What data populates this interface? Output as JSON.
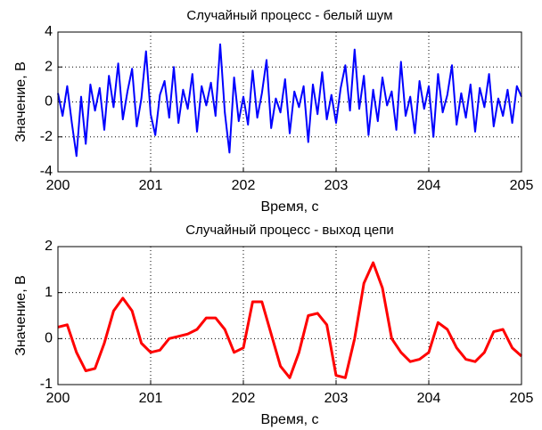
{
  "chart_data": [
    {
      "type": "line",
      "title": "Случайный процесс - белый шум",
      "xlabel": "Время, с",
      "ylabel": "Значение, В",
      "color": "#0000ff",
      "xlim": [
        200,
        205
      ],
      "xticks": [
        200,
        201,
        202,
        203,
        204,
        205
      ],
      "ylim": [
        -4,
        4
      ],
      "yticks": [
        -4,
        -2,
        0,
        2,
        4
      ],
      "grid": true,
      "x": [
        200,
        200.05,
        200.1,
        200.15,
        200.2,
        200.25,
        200.3,
        200.35,
        200.4,
        200.45,
        200.5,
        200.55,
        200.6,
        200.65,
        200.7,
        200.75,
        200.8,
        200.85,
        200.9,
        200.95,
        201,
        201.05,
        201.1,
        201.15,
        201.2,
        201.25,
        201.3,
        201.35,
        201.4,
        201.45,
        201.5,
        201.55,
        201.6,
        201.65,
        201.7,
        201.75,
        201.8,
        201.85,
        201.9,
        201.95,
        202,
        202.05,
        202.1,
        202.15,
        202.2,
        202.25,
        202.3,
        202.35,
        202.4,
        202.45,
        202.5,
        202.55,
        202.6,
        202.65,
        202.7,
        202.75,
        202.8,
        202.85,
        202.9,
        202.95,
        203,
        203.05,
        203.1,
        203.15,
        203.2,
        203.25,
        203.3,
        203.35,
        203.4,
        203.45,
        203.5,
        203.55,
        203.6,
        203.65,
        203.7,
        203.75,
        203.8,
        203.85,
        203.9,
        203.95,
        204,
        204.05,
        204.1,
        204.15,
        204.2,
        204.25,
        204.3,
        204.35,
        204.4,
        204.45,
        204.5,
        204.55,
        204.6,
        204.65,
        204.7,
        204.75,
        204.8,
        204.85,
        204.9,
        204.95,
        205
      ],
      "values": [
        0.5,
        -0.8,
        0.9,
        -1.2,
        -3.1,
        0.3,
        -2.4,
        1.0,
        -0.5,
        0.8,
        -1.6,
        1.5,
        -0.3,
        2.2,
        -1.0,
        0.6,
        1.9,
        -1.4,
        0.2,
        2.9,
        -0.7,
        -1.9,
        0.4,
        1.2,
        -0.9,
        2.0,
        -1.2,
        0.7,
        -0.4,
        1.6,
        -1.7,
        0.9,
        -0.2,
        1.1,
        -0.8,
        3.3,
        -0.6,
        -2.9,
        1.4,
        -1.1,
        0.3,
        -1.3,
        1.8,
        -0.9,
        0.5,
        2.4,
        -1.5,
        0.2,
        -0.6,
        1.3,
        -1.8,
        0.6,
        -0.3,
        0.9,
        -2.3,
        1.0,
        -0.7,
        1.7,
        -1.0,
        0.4,
        -1.2,
        0.8,
        2.1,
        -0.5,
        3.0,
        -0.4,
        1.5,
        -1.9,
        0.7,
        -1.1,
        1.4,
        -0.2,
        0.6,
        -1.6,
        2.3,
        -0.8,
        0.3,
        -1.8,
        1.2,
        -0.4,
        0.9,
        -2.0,
        1.6,
        -0.6,
        0.4,
        2.1,
        -1.3,
        0.5,
        -0.9,
        1.0,
        -1.7,
        0.8,
        -0.3,
        1.6,
        -1.4,
        0.2,
        -0.8,
        0.7,
        -1.2,
        0.9,
        0.3
      ]
    },
    {
      "type": "line",
      "title": "Случайный процесс - выход цепи",
      "xlabel": "Время, с",
      "ylabel": "Значение, В",
      "color": "#ff0000",
      "xlim": [
        200,
        205
      ],
      "xticks": [
        200,
        201,
        202,
        203,
        204,
        205
      ],
      "ylim": [
        -1,
        2
      ],
      "yticks": [
        -1,
        0,
        1,
        2
      ],
      "grid": true,
      "x": [
        200,
        200.1,
        200.2,
        200.3,
        200.4,
        200.5,
        200.6,
        200.7,
        200.8,
        200.9,
        201,
        201.1,
        201.2,
        201.3,
        201.4,
        201.5,
        201.6,
        201.7,
        201.8,
        201.9,
        202,
        202.1,
        202.2,
        202.3,
        202.4,
        202.5,
        202.6,
        202.7,
        202.8,
        202.9,
        203,
        203.1,
        203.2,
        203.3,
        203.4,
        203.5,
        203.6,
        203.7,
        203.8,
        203.9,
        204,
        204.1,
        204.2,
        204.3,
        204.4,
        204.5,
        204.6,
        204.7,
        204.8,
        204.9,
        205
      ],
      "values": [
        0.25,
        0.3,
        -0.3,
        -0.7,
        -0.65,
        -0.1,
        0.6,
        0.88,
        0.6,
        -0.1,
        -0.3,
        -0.25,
        0.0,
        0.05,
        0.1,
        0.2,
        0.45,
        0.45,
        0.2,
        -0.3,
        -0.2,
        0.8,
        0.8,
        0.1,
        -0.6,
        -0.85,
        -0.3,
        0.5,
        0.55,
        0.3,
        -0.8,
        -0.85,
        0.0,
        1.2,
        1.65,
        1.1,
        0.0,
        -0.3,
        -0.5,
        -0.45,
        -0.3,
        0.35,
        0.2,
        -0.2,
        -0.45,
        -0.5,
        -0.3,
        0.15,
        0.2,
        -0.2,
        -0.38
      ]
    }
  ]
}
